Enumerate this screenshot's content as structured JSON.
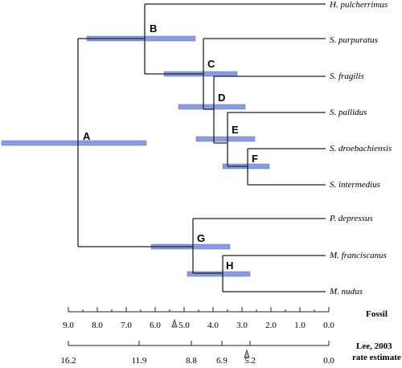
{
  "tree": {
    "nodes": [
      "A",
      "B",
      "C",
      "D",
      "E",
      "F",
      "G",
      "H"
    ],
    "taxa": [
      "H. pulcherrimus",
      "S. purpuratus",
      "S. fragilis",
      "S. pallidus",
      "S. droebachiensis",
      "S. intermedius",
      "P. depressus",
      "M. franciscanus",
      "M. nudus"
    ]
  },
  "axes": [
    {
      "label": "Fossil",
      "ticks": [
        "9.0",
        "8.0",
        "7.0",
        "6.0",
        "5.0",
        "4.0",
        "3.0",
        "2.0",
        "1.0",
        "0.0"
      ]
    },
    {
      "label": "Lee, 2003",
      "sublabel": "rate estimate",
      "ticks": [
        "16.2",
        "11.9",
        "8.8",
        "6.9",
        "5.2",
        "0.0"
      ]
    }
  ]
}
